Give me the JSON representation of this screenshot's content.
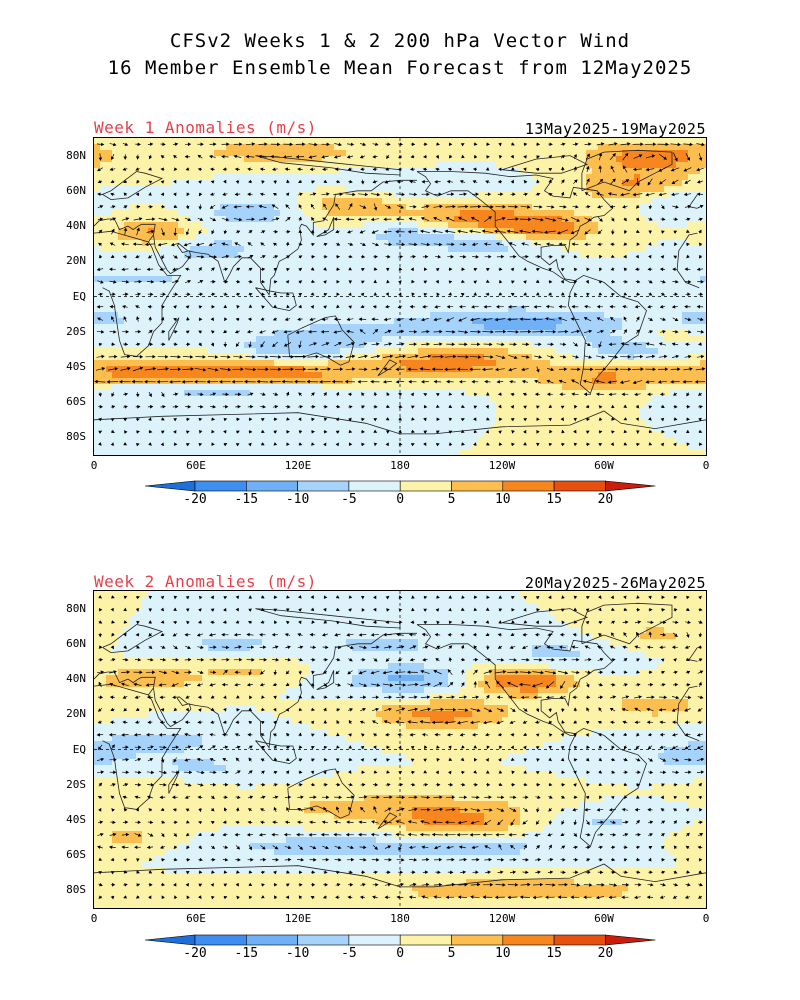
{
  "header": {
    "title_line1": "CFSv2 Weeks 1 & 2 200 hPa Vector Wind",
    "title_line2": "16 Member Ensemble Mean Forecast from 12May2025"
  },
  "panels": [
    {
      "label": "Week 1 Anomalies (m/s)",
      "dates": "13May2025-19May2025"
    },
    {
      "label": "Week 2 Anomalies (m/s)",
      "dates": "20May2025-26May2025"
    }
  ],
  "axes": {
    "lat_labels": [
      "80N",
      "60N",
      "40N",
      "20N",
      "EQ",
      "20S",
      "40S",
      "60S",
      "80S"
    ],
    "lon_labels": [
      "0",
      "60E",
      "120E",
      "180",
      "120W",
      "60W",
      "0"
    ]
  },
  "colorbar": {
    "tick_labels": [
      "-20",
      "-15",
      "-10",
      "-5",
      "0",
      "5",
      "10",
      "15",
      "20"
    ],
    "colors": [
      "#1e6fd9",
      "#3d8ef0",
      "#6fb0f7",
      "#a6d3fb",
      "#dcf3fc",
      "#fdf3a8",
      "#fbbe4f",
      "#f7861f",
      "#e85010",
      "#cc1c0c"
    ]
  },
  "colors": {
    "label_red": "#e8404a",
    "coast": "#222222",
    "vector": "#000000"
  }
}
